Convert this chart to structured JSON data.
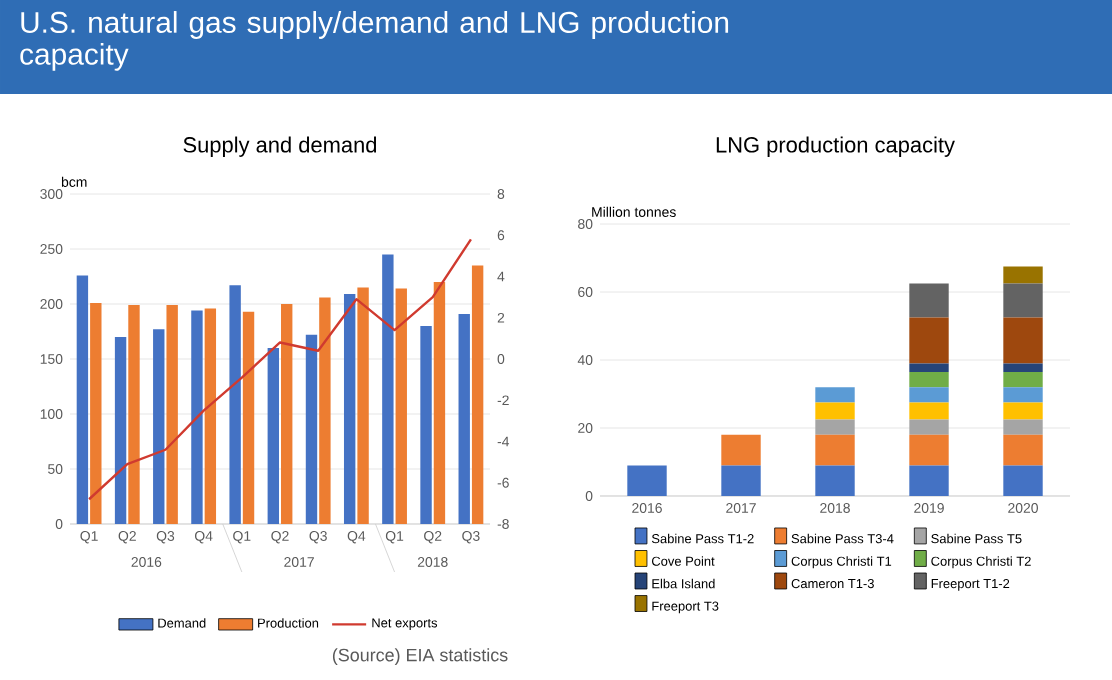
{
  "chart_data": [
    {
      "type": "bar",
      "title": "U.S. natural gas supply/demand and LNG production capacity",
      "subtitle": "Supply and demand",
      "ylabel": "bcm",
      "categories": [
        "Q1",
        "Q2",
        "Q3",
        "Q4",
        "Q1",
        "Q2",
        "Q3",
        "Q4",
        "Q1",
        "Q2",
        "Q3"
      ],
      "annotations": [
        "2016",
        "2017",
        "2018"
      ],
      "series": [
        {
          "name": "Demand",
          "color": "#4472c4",
          "values": [
            226,
            170,
            177,
            194,
            217,
            160,
            172,
            209,
            245,
            180,
            191
          ]
        },
        {
          "name": "Production",
          "color": "#ed7d31",
          "values": [
            201,
            199,
            199,
            196,
            193,
            200,
            206,
            215,
            214,
            220,
            235
          ]
        },
        {
          "name": "Net exports",
          "type": "line",
          "axis": "y2",
          "color": "#d03a2f",
          "values": [
            -6.8,
            -5.1,
            -4.4,
            -2.5,
            -0.9,
            0.8,
            0.4,
            2.9,
            1.4,
            3.0,
            5.8
          ]
        }
      ],
      "ylim": [
        0,
        300
      ],
      "yticks": [
        0,
        50,
        100,
        150,
        200,
        250,
        300
      ],
      "y2lim": [
        -8,
        8
      ],
      "y2ticks": [
        -8,
        -6,
        -4,
        -2,
        0,
        2,
        4,
        6,
        8
      ],
      "grid": "y",
      "legend": "bottom",
      "marker": "none",
      "line_style": "solid"
    },
    {
      "type": "bar",
      "title": "LNG production capacity",
      "ylabel": "Million tonnes",
      "stacked": true,
      "categories": [
        "2016",
        "2017",
        "2018",
        "2019",
        "2020"
      ],
      "annotations": [
        "(Source) EIA statistics"
      ],
      "series": [
        {
          "name": "Sabine Pass T1-2",
          "color": "#4472c4",
          "values": [
            9,
            9,
            9,
            9,
            9
          ]
        },
        {
          "name": "Sabine Pass T3-4",
          "color": "#ed7d31",
          "values": [
            0,
            9,
            9,
            9,
            9
          ]
        },
        {
          "name": "Sabine Pass T5",
          "color": "#a5a5a5",
          "values": [
            0,
            0,
            4.5,
            4.5,
            4.5
          ]
        },
        {
          "name": "Cove Point",
          "color": "#ffc000",
          "values": [
            0,
            0,
            5,
            5,
            5
          ]
        },
        {
          "name": "Corpus Christi T1",
          "color": "#5b9bd5",
          "values": [
            0,
            0,
            4.5,
            4.5,
            4.5
          ]
        },
        {
          "name": "Corpus Christi T2",
          "color": "#70ad47",
          "values": [
            0,
            0,
            0,
            4.5,
            4.5
          ]
        },
        {
          "name": "Elba Island",
          "color": "#264478",
          "values": [
            0,
            0,
            0,
            2.5,
            2.5
          ]
        },
        {
          "name": "Cameron T1-3",
          "color": "#9e480e",
          "values": [
            0,
            0,
            0,
            13.5,
            13.5
          ]
        },
        {
          "name": "Freeport T1-2",
          "color": "#636363",
          "values": [
            0,
            0,
            0,
            10,
            10
          ]
        },
        {
          "name": "Freeport T3",
          "color": "#997300",
          "values": [
            0,
            0,
            0,
            0,
            5
          ]
        }
      ],
      "ylim": [
        0,
        80
      ],
      "yticks": [
        0,
        20,
        40,
        60,
        80
      ],
      "grid": "y",
      "legend": "bottom"
    }
  ]
}
